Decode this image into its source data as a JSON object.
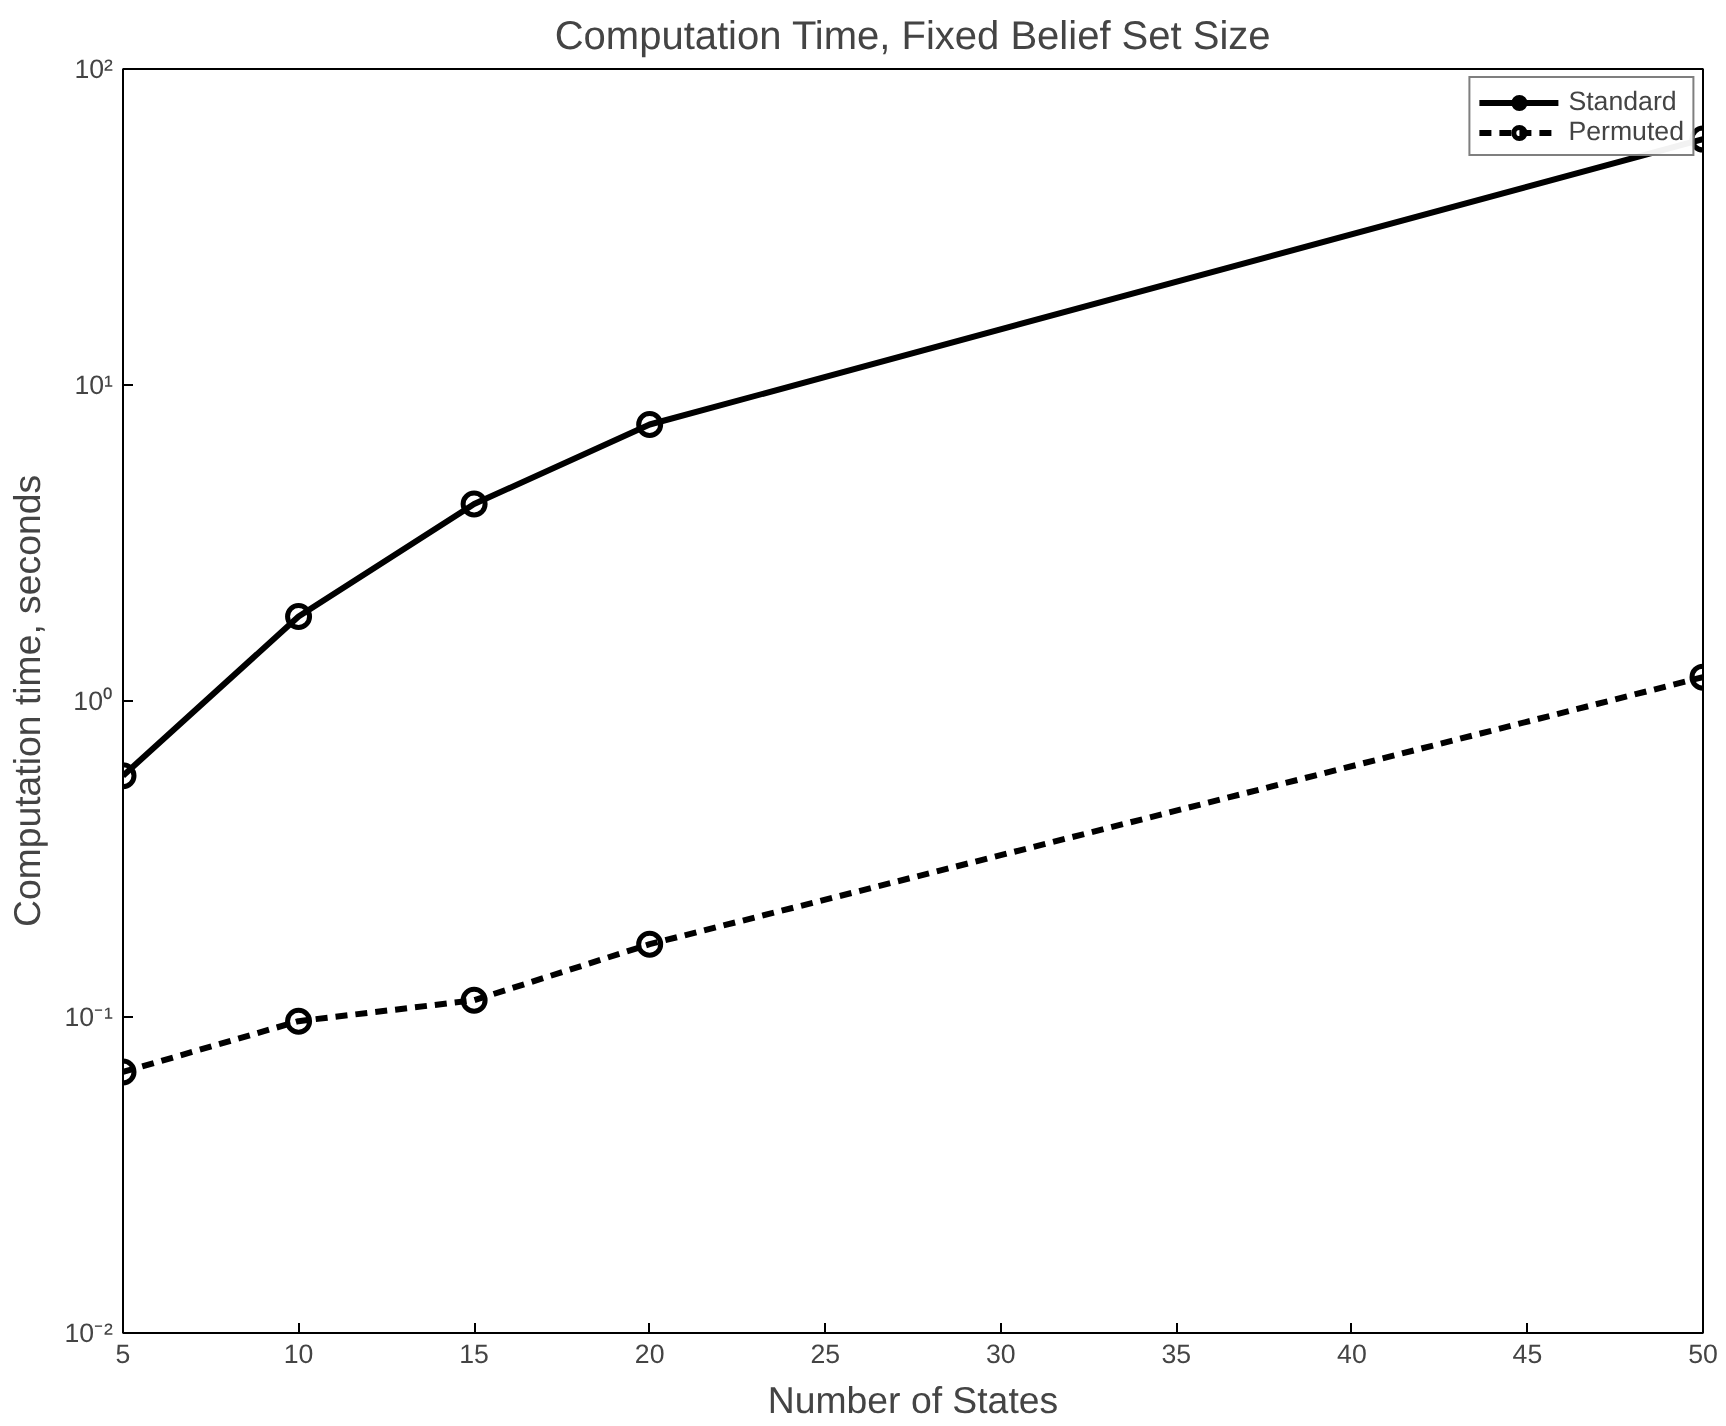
{
  "chart_data": {
    "type": "line",
    "title": "Computation Time, Fixed Belief Set Size",
    "xlabel": "Number of States",
    "ylabel": "Computation time, seconds",
    "x": [
      5,
      10,
      15,
      20,
      50
    ],
    "series": [
      {
        "name": "Standard",
        "color": "#000000",
        "line_style": "solid",
        "values": [
          0.58,
          1.85,
          4.2,
          7.5,
          60
        ]
      },
      {
        "name": "Permuted",
        "color": "#000000",
        "line_style": "dashed",
        "values": [
          0.067,
          0.097,
          0.113,
          0.17,
          1.19
        ]
      }
    ],
    "marker": "circle",
    "log": "y",
    "grid": false,
    "legend": "top right",
    "xlim": [
      5,
      50
    ],
    "xticks": [
      5,
      10,
      15,
      20,
      25,
      30,
      35,
      40,
      45,
      50
    ],
    "ylim": [
      0.01,
      100
    ],
    "yticks": [
      {
        "value": 0.01,
        "label": "10⁻²"
      },
      {
        "value": 0.1,
        "label": "10⁻¹"
      },
      {
        "value": 1,
        "label": "10⁰"
      },
      {
        "value": 10,
        "label": "10¹"
      },
      {
        "value": 100,
        "label": "10²"
      }
    ]
  }
}
